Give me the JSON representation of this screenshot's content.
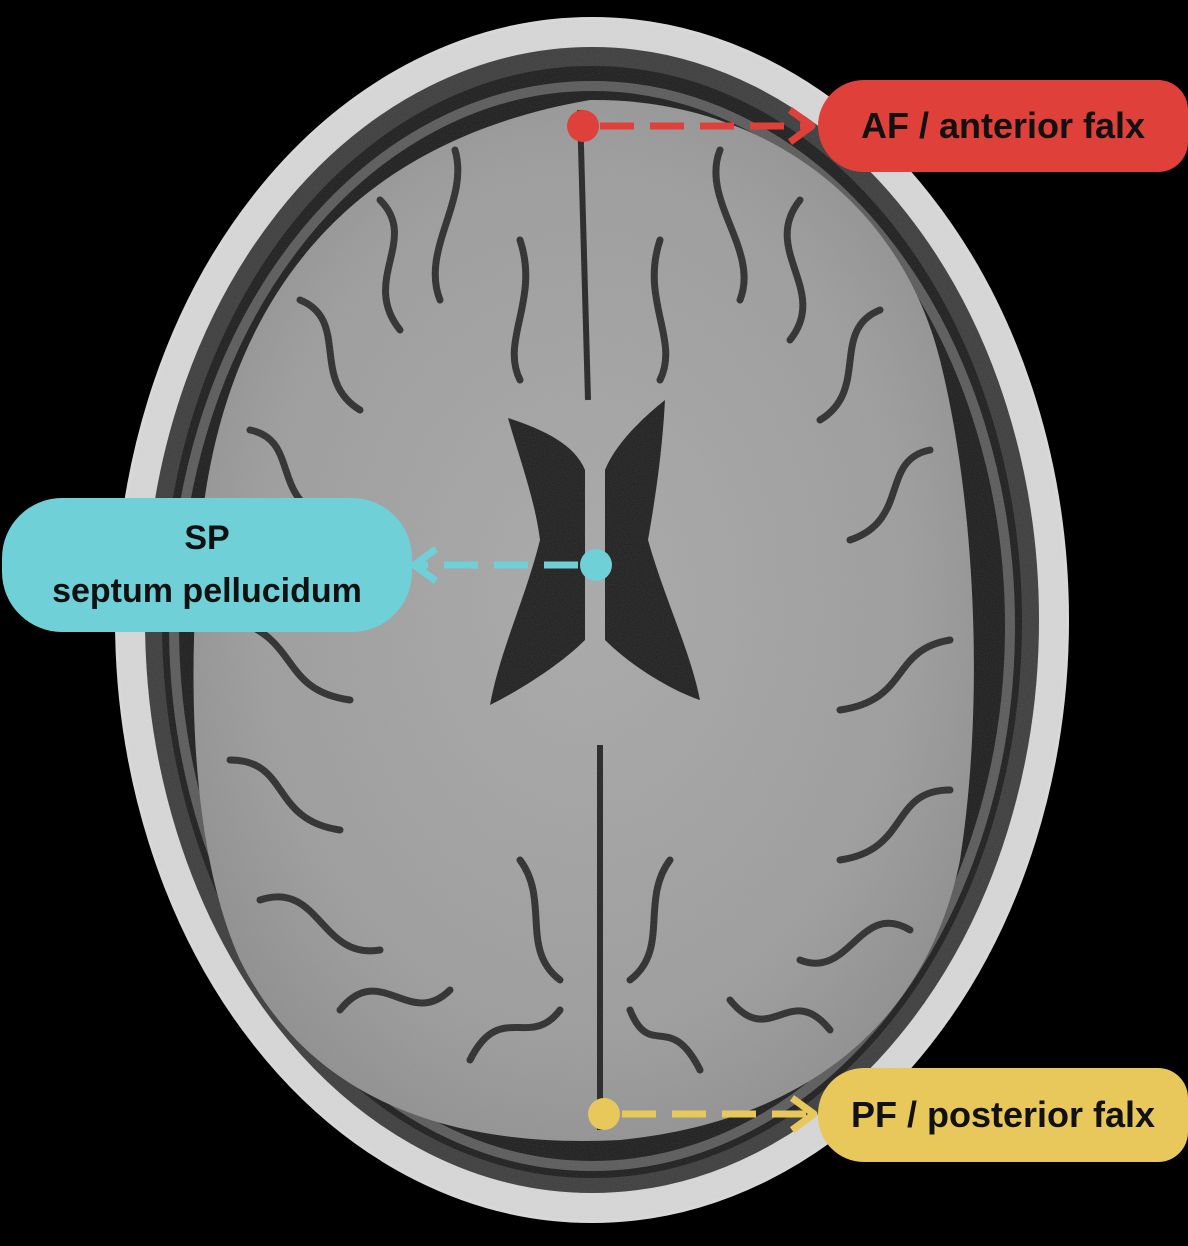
{
  "annotations": [
    {
      "id": "af",
      "lines": [
        "AF / anterior falx"
      ],
      "color": "#e0403a"
    },
    {
      "id": "sp",
      "lines": [
        "SP",
        "septum pellucidum"
      ],
      "color": "#6fd0d8"
    },
    {
      "id": "pf",
      "lines": [
        "PF / posterior falx"
      ],
      "color": "#e8c85a"
    }
  ]
}
